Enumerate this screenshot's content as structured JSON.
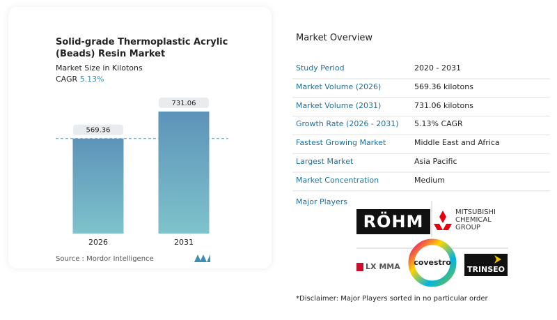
{
  "chart_data": {
    "type": "bar",
    "title": "Solid-grade Thermoplastic Acrylic (Beads) Resin Market",
    "subtitle": "Market Size in Kilotons",
    "cagr_label": "CAGR",
    "cagr": "5.13%",
    "categories": [
      "2026",
      "2031"
    ],
    "values": [
      569.36,
      731.06
    ],
    "color": "#6aa6c2",
    "source": "Source :  Mordor Intelligence"
  },
  "overview": {
    "title": "Market Overview",
    "rows": [
      [
        "Study Period",
        "2020 - 2031"
      ],
      [
        "Market Volume (2026)",
        "569.36 kilotons"
      ],
      [
        "Market Volume (2031)",
        "731.06 kilotons"
      ],
      [
        "Growth Rate (2026 - 2031)",
        "5.13% CAGR"
      ],
      [
        "Fastest Growing Market",
        "Middle East and Africa"
      ],
      [
        "Largest Market",
        "Asia Pacific"
      ],
      [
        "Market Concentration",
        "Medium"
      ]
    ]
  },
  "players": {
    "title": "Major Players",
    "logos": [
      "RÖHM",
      "MITSUBISHI",
      "CHEMICAL",
      "GROUP",
      "LX MMA",
      "covestro",
      "TRINSEO"
    ],
    "disclaimer": "*Disclaimer: Major Players sorted in no particular order"
  }
}
